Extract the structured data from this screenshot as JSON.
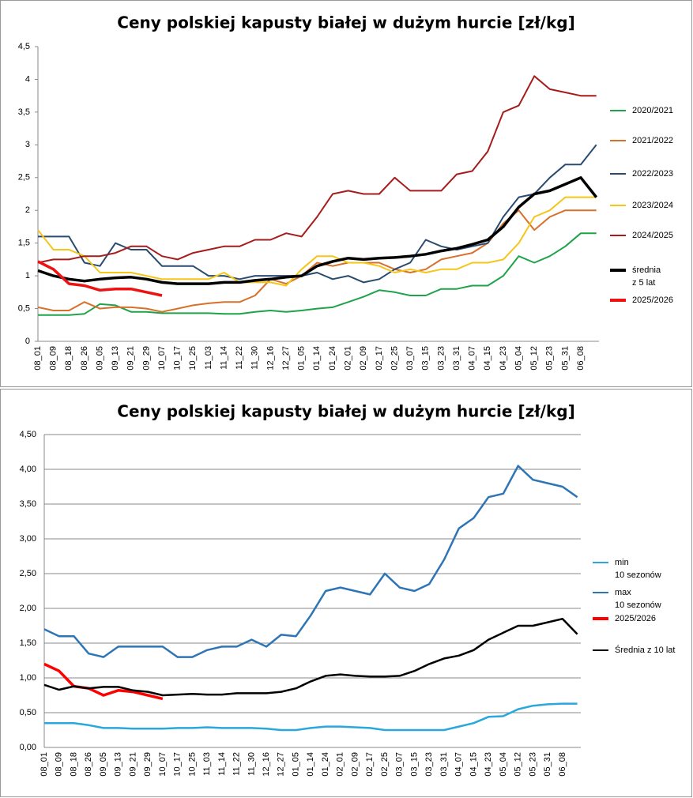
{
  "chart_data": [
    {
      "type": "line",
      "title": "Ceny polskiej kapusty białej w dużym hurcie [zł/kg]",
      "categories": [
        "08_01",
        "08_09",
        "08_18",
        "08_26",
        "09_05",
        "09_13",
        "09_21",
        "09_29",
        "10_07",
        "10_17",
        "10_25",
        "11_03",
        "11_14",
        "11_22",
        "11_30",
        "12_16",
        "12_27",
        "01_05",
        "01_14",
        "01_24",
        "02_01",
        "02_09",
        "02_17",
        "02_25",
        "03_07",
        "03_15",
        "03_23",
        "03_31",
        "04_07",
        "04_15",
        "04_23",
        "05_04",
        "05_12",
        "05_23",
        "05_31",
        "06_08",
        null
      ],
      "ylim": [
        0,
        4.5
      ],
      "yticks": [
        0,
        {
          "value": 0.5,
          "label": "0,5"
        },
        1,
        {
          "value": 1.5,
          "label": "1,5"
        },
        2,
        {
          "value": 2.5,
          "label": "2,5"
        },
        3,
        {
          "value": 3.5,
          "label": "3,5"
        },
        4,
        {
          "value": 4.5,
          "label": "4,5"
        }
      ],
      "grid": false,
      "series": [
        {
          "name": "2020/2021",
          "color": "#1fa34a",
          "width": 2,
          "values": [
            0.4,
            0.4,
            0.4,
            0.42,
            0.57,
            0.55,
            0.45,
            0.45,
            0.43,
            0.43,
            0.43,
            0.43,
            0.42,
            0.42,
            0.45,
            0.47,
            0.45,
            0.47,
            0.5,
            0.52,
            0.6,
            0.68,
            0.78,
            0.75,
            0.7,
            0.7,
            0.8,
            0.8,
            0.85,
            0.85,
            1.0,
            1.3,
            1.2,
            1.3,
            1.45,
            1.65,
            1.65
          ]
        },
        {
          "name": "2021/2022",
          "color": "#d7702a",
          "width": 2,
          "values": [
            0.52,
            0.47,
            0.47,
            0.6,
            0.5,
            0.52,
            0.52,
            0.5,
            0.45,
            0.5,
            0.55,
            0.58,
            0.6,
            0.6,
            0.7,
            0.95,
            0.88,
            1.0,
            1.2,
            1.15,
            1.2,
            1.2,
            1.2,
            1.1,
            1.05,
            1.1,
            1.25,
            1.3,
            1.35,
            1.5,
            1.8,
            2.0,
            1.7,
            1.9,
            2.0,
            2.0,
            2.0
          ]
        },
        {
          "name": "2022/2023",
          "color": "#2a4b70",
          "width": 2,
          "values": [
            1.6,
            1.6,
            1.6,
            1.2,
            1.15,
            1.5,
            1.4,
            1.4,
            1.15,
            1.15,
            1.15,
            1.0,
            1.0,
            0.95,
            1.0,
            1.0,
            1.0,
            1.0,
            1.05,
            0.95,
            1.0,
            0.9,
            0.95,
            1.1,
            1.2,
            1.55,
            1.45,
            1.4,
            1.45,
            1.5,
            1.9,
            2.2,
            2.25,
            2.5,
            2.7,
            2.7,
            3.0
          ]
        },
        {
          "name": "2023/2024",
          "color": "#f5c518",
          "width": 2,
          "values": [
            1.7,
            1.4,
            1.4,
            1.3,
            1.05,
            1.05,
            1.05,
            1.0,
            0.95,
            0.95,
            0.95,
            0.95,
            1.05,
            0.9,
            0.9,
            0.9,
            0.85,
            1.1,
            1.3,
            1.3,
            1.2,
            1.2,
            1.15,
            1.05,
            1.1,
            1.05,
            1.1,
            1.1,
            1.2,
            1.2,
            1.25,
            1.5,
            1.9,
            2.0,
            2.2,
            2.2,
            2.2
          ]
        },
        {
          "name": "2024/2025",
          "color": "#a61c1c",
          "width": 2,
          "values": [
            1.2,
            1.25,
            1.25,
            1.3,
            1.3,
            1.35,
            1.45,
            1.45,
            1.3,
            1.25,
            1.35,
            1.4,
            1.45,
            1.45,
            1.55,
            1.55,
            1.65,
            1.6,
            1.9,
            2.25,
            2.3,
            2.25,
            2.25,
            2.5,
            2.3,
            2.3,
            2.3,
            2.55,
            2.6,
            2.9,
            3.5,
            3.6,
            4.05,
            3.85,
            3.8,
            3.75,
            3.75
          ]
        },
        {
          "name": "średnia\nz 5 lat",
          "color": "#000000",
          "width": 3.5,
          "values": [
            1.08,
            1.0,
            0.95,
            0.92,
            0.95,
            0.97,
            0.98,
            0.95,
            0.9,
            0.88,
            0.88,
            0.88,
            0.9,
            0.9,
            0.93,
            0.95,
            0.98,
            1.0,
            1.15,
            1.22,
            1.27,
            1.25,
            1.27,
            1.28,
            1.3,
            1.33,
            1.38,
            1.42,
            1.48,
            1.55,
            1.75,
            2.05,
            2.25,
            2.3,
            2.4,
            2.5,
            2.2
          ]
        },
        {
          "name": "2025/2026",
          "color": "#ee1111",
          "width": 3.5,
          "values": [
            1.22,
            1.1,
            0.88,
            0.85,
            0.78,
            0.8,
            0.8,
            0.75,
            0.7,
            null,
            null,
            null,
            null,
            null,
            null,
            null,
            null,
            null,
            null,
            null,
            null,
            null,
            null,
            null,
            null,
            null,
            null,
            null,
            null,
            null,
            null,
            null,
            null,
            null,
            null,
            null,
            null
          ]
        }
      ]
    },
    {
      "type": "line",
      "title": "Ceny polskiej kapusty białej w dużym hurcie [zł/kg]",
      "categories": [
        "08_01",
        "08_09",
        "08_18",
        "08_26",
        "09_05",
        "09_13",
        "09_21",
        "09_29",
        "10_07",
        "10_17",
        "10_25",
        "11_03",
        "11_14",
        "11_22",
        "11_30",
        "12_16",
        "12_27",
        "01_05",
        "01_14",
        "01_24",
        "02_01",
        "02_09",
        "02_17",
        "02_25",
        "03_07",
        "03_15",
        "03_23",
        "03_31",
        "04_07",
        "04_15",
        "04_23",
        "05_04",
        "05_12",
        "05_23",
        "05_31",
        "06_08",
        null
      ],
      "ylim": [
        0,
        4.5
      ],
      "yticks": [
        {
          "value": 0,
          "label": "0,00"
        },
        {
          "value": 0.5,
          "label": "0,50"
        },
        {
          "value": 1,
          "label": "1,00"
        },
        {
          "value": 1.5,
          "label": "1,50"
        },
        {
          "value": 2,
          "label": "2,00"
        },
        {
          "value": 2.5,
          "label": "2,50"
        },
        {
          "value": 3,
          "label": "3,00"
        },
        {
          "value": 3.5,
          "label": "3,50"
        },
        {
          "value": 4,
          "label": "4,00"
        },
        {
          "value": 4.5,
          "label": "4,50"
        }
      ],
      "grid": true,
      "series": [
        {
          "name": "min\n10 sezonów",
          "color": "#29a8dc",
          "width": 2.5,
          "values": [
            0.35,
            0.35,
            0.35,
            0.32,
            0.28,
            0.28,
            0.27,
            0.27,
            0.27,
            0.28,
            0.28,
            0.29,
            0.28,
            0.28,
            0.28,
            0.27,
            0.25,
            0.25,
            0.28,
            0.3,
            0.3,
            0.29,
            0.28,
            0.25,
            0.25,
            0.25,
            0.25,
            0.25,
            0.3,
            0.35,
            0.44,
            0.45,
            0.55,
            0.6,
            0.62,
            0.63,
            0.63
          ]
        },
        {
          "name": "max\n10 sezonów",
          "color": "#2e75b6",
          "width": 2.5,
          "values": [
            1.7,
            1.6,
            1.6,
            1.35,
            1.3,
            1.45,
            1.45,
            1.45,
            1.45,
            1.3,
            1.3,
            1.4,
            1.45,
            1.45,
            1.55,
            1.45,
            1.62,
            1.6,
            1.9,
            2.25,
            2.3,
            2.25,
            2.2,
            2.5,
            2.3,
            2.25,
            2.35,
            2.7,
            3.15,
            3.3,
            3.6,
            3.65,
            4.05,
            3.85,
            3.8,
            3.75,
            3.6
          ]
        },
        {
          "name": "2025/2026",
          "color": "#ff0000",
          "width": 3.5,
          "values": [
            1.2,
            1.1,
            0.88,
            0.85,
            0.75,
            0.82,
            0.8,
            0.75,
            0.7,
            null,
            null,
            null,
            null,
            null,
            null,
            null,
            null,
            null,
            null,
            null,
            null,
            null,
            null,
            null,
            null,
            null,
            null,
            null,
            null,
            null,
            null,
            null,
            null,
            null,
            null,
            null,
            null
          ]
        },
        {
          "name": "Średnia z 10 lat",
          "color": "#000000",
          "width": 2.5,
          "values": [
            0.9,
            0.83,
            0.88,
            0.85,
            0.87,
            0.87,
            0.82,
            0.8,
            0.75,
            0.76,
            0.77,
            0.76,
            0.76,
            0.78,
            0.78,
            0.78,
            0.8,
            0.85,
            0.95,
            1.03,
            1.05,
            1.03,
            1.02,
            1.02,
            1.03,
            1.1,
            1.2,
            1.28,
            1.32,
            1.4,
            1.55,
            1.65,
            1.75,
            1.75,
            1.8,
            1.85,
            1.63
          ]
        }
      ]
    }
  ]
}
